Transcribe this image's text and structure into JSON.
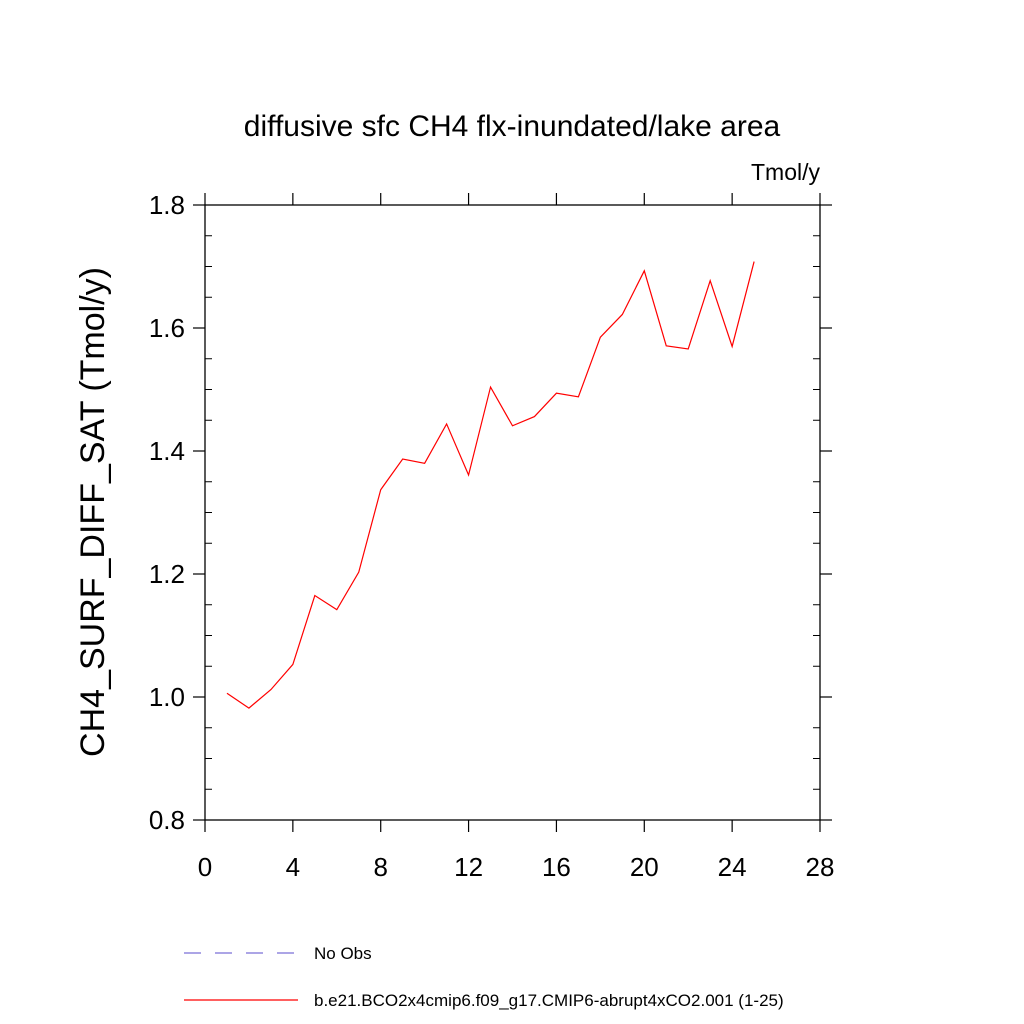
{
  "chart_data": {
    "type": "line",
    "title": "diffusive sfc CH4 flx-inundated/lake area",
    "units": "Tmol/y",
    "xlabel": "",
    "ylabel": "CH4_SURF_DIFF_SAT  (Tmol/y)",
    "xlim": [
      0,
      28
    ],
    "ylim": [
      0.8,
      1.8
    ],
    "xticks": [
      "0",
      "4",
      "8",
      "12",
      "16",
      "20",
      "24",
      "28"
    ],
    "yticks": [
      "0.8",
      "1.0",
      "1.2",
      "1.4",
      "1.6",
      "1.8"
    ],
    "grid": false,
    "legend_placement": "bottom",
    "series": [
      {
        "name": "b.e21.BCO2x4cmip6.f09_g17.CMIP6-abrupt4xCO2.001 (1-25)",
        "color": "#ff0000",
        "style": "solid",
        "x": [
          1,
          2,
          3,
          4,
          5,
          6,
          7,
          8,
          9,
          10,
          11,
          12,
          13,
          14,
          15,
          16,
          17,
          18,
          19,
          20,
          21,
          22,
          23,
          24,
          25
        ],
        "values": [
          1.006,
          0.982,
          1.012,
          1.053,
          1.165,
          1.142,
          1.203,
          1.337,
          1.387,
          1.38,
          1.444,
          1.361,
          1.504,
          1.441,
          1.456,
          1.494,
          1.488,
          1.585,
          1.622,
          1.693,
          1.571,
          1.566,
          1.677,
          1.57,
          1.708
        ]
      },
      {
        "name": "No Obs",
        "color": "#7b6fd8",
        "style": "dashed",
        "x": [],
        "values": []
      }
    ]
  }
}
